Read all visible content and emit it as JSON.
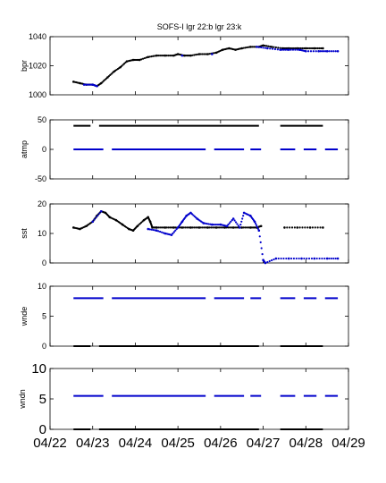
{
  "chart_data": [
    {
      "type": "scatter",
      "title": "SOFS-I  lgr 22:b lgr 23:k",
      "ylabel": "bpr",
      "xlim": [
        "04/22",
        "04/29"
      ],
      "ylim": [
        1000,
        1040
      ],
      "yticks": [
        "1000",
        "1020",
        "1040"
      ],
      "series": [
        {
          "color": "#000000",
          "points": [
            [
              0.55,
              1009
            ],
            [
              0.7,
              1008
            ],
            [
              0.85,
              1007
            ],
            [
              1.0,
              1007
            ],
            [
              1.1,
              1006
            ],
            [
              1.2,
              1008
            ],
            [
              1.35,
              1012
            ],
            [
              1.5,
              1016
            ],
            [
              1.65,
              1019
            ],
            [
              1.8,
              1023
            ],
            [
              1.95,
              1024
            ],
            [
              2.1,
              1024
            ],
            [
              2.3,
              1026
            ],
            [
              2.5,
              1027
            ],
            [
              2.7,
              1027
            ],
            [
              2.9,
              1027
            ],
            [
              3.0,
              1028
            ],
            [
              3.15,
              1027
            ],
            [
              3.3,
              1027
            ],
            [
              3.5,
              1028
            ],
            [
              3.7,
              1028
            ],
            [
              3.9,
              1029
            ],
            [
              4.05,
              1031
            ],
            [
              4.2,
              1032
            ],
            [
              4.35,
              1031
            ],
            [
              4.5,
              1032
            ],
            [
              4.7,
              1033
            ],
            [
              4.9,
              1033
            ],
            [
              5.0,
              1034
            ],
            [
              5.2,
              1033
            ],
            [
              5.45,
              1032
            ],
            [
              5.6,
              1032
            ],
            [
              5.8,
              1032
            ],
            [
              6.0,
              1032
            ],
            [
              6.2,
              1032
            ],
            [
              6.4,
              1032
            ]
          ]
        },
        {
          "color": "#0000cc",
          "points": [
            [
              0.8,
              1007
            ],
            [
              1.0,
              1007
            ],
            [
              1.1,
              1006
            ],
            [
              3.1,
              1027
            ],
            [
              3.8,
              1028
            ],
            [
              4.85,
              1033
            ],
            [
              5.1,
              1032
            ],
            [
              5.4,
              1031
            ],
            [
              5.6,
              1031
            ],
            [
              5.85,
              1031
            ],
            [
              6.0,
              1030
            ],
            [
              6.3,
              1030
            ],
            [
              6.5,
              1030
            ],
            [
              6.75,
              1030
            ]
          ]
        }
      ]
    },
    {
      "type": "line",
      "ylabel": "atmp",
      "xlim": [
        "04/22",
        "04/29"
      ],
      "ylim": [
        -50,
        50
      ],
      "yticks": [
        "-50",
        "0",
        "50"
      ],
      "series": [
        {
          "color": "#000000",
          "value": 40,
          "segments": [
            [
              0.55,
              0.95
            ],
            [
              1.15,
              4.9
            ],
            [
              5.4,
              6.4
            ]
          ]
        },
        {
          "color": "#0000cc",
          "value": 0,
          "segments": [
            [
              0.55,
              1.25
            ],
            [
              1.45,
              3.65
            ],
            [
              3.85,
              4.55
            ],
            [
              4.7,
              4.95
            ],
            [
              5.4,
              5.75
            ],
            [
              5.95,
              6.25
            ],
            [
              6.45,
              6.75
            ]
          ]
        }
      ]
    },
    {
      "type": "scatter",
      "ylabel": "sst",
      "xlim": [
        "04/22",
        "04/29"
      ],
      "ylim": [
        0,
        20
      ],
      "yticks": [
        "0",
        "10",
        "20"
      ],
      "series": [
        {
          "color": "#000000",
          "points": [
            [
              0.55,
              12
            ],
            [
              0.7,
              11.5
            ],
            [
              0.85,
              12.5
            ],
            [
              1.0,
              14
            ],
            [
              1.1,
              16
            ],
            [
              1.2,
              17.5
            ],
            [
              1.3,
              17
            ],
            [
              1.4,
              15.5
            ],
            [
              1.55,
              14.5
            ],
            [
              1.7,
              13
            ],
            [
              1.85,
              11.5
            ],
            [
              1.95,
              11
            ],
            [
              2.05,
              12.5
            ],
            [
              2.2,
              14.5
            ],
            [
              2.3,
              15.5
            ],
            [
              2.35,
              14
            ],
            [
              2.4,
              12
            ],
            [
              2.5,
              12
            ],
            [
              2.7,
              12
            ],
            [
              2.9,
              12
            ],
            [
              3.1,
              12
            ],
            [
              3.3,
              12
            ],
            [
              3.5,
              12
            ],
            [
              3.7,
              12
            ],
            [
              3.9,
              12
            ],
            [
              4.1,
              12
            ],
            [
              4.3,
              12
            ],
            [
              4.5,
              12
            ],
            [
              4.7,
              12
            ],
            [
              4.85,
              12
            ],
            [
              4.95,
              12.5
            ],
            [
              5.5,
              12
            ],
            [
              5.8,
              12
            ],
            [
              6.1,
              12
            ],
            [
              6.4,
              12
            ]
          ]
        },
        {
          "color": "#0000cc",
          "points": [
            [
              1.0,
              14
            ],
            [
              1.2,
              17.5
            ],
            [
              2.3,
              11.5
            ],
            [
              2.5,
              11
            ],
            [
              2.7,
              10
            ],
            [
              2.85,
              9.5
            ],
            [
              3.0,
              12
            ],
            [
              3.1,
              14
            ],
            [
              3.2,
              16
            ],
            [
              3.3,
              17
            ],
            [
              3.45,
              15
            ],
            [
              3.6,
              13.5
            ],
            [
              3.8,
              13
            ],
            [
              4.0,
              13
            ],
            [
              4.15,
              12.5
            ],
            [
              4.3,
              15
            ],
            [
              4.45,
              12
            ],
            [
              4.55,
              17
            ],
            [
              4.7,
              16
            ],
            [
              4.8,
              14
            ],
            [
              4.9,
              11
            ],
            [
              5.0,
              1
            ],
            [
              5.05,
              0
            ],
            [
              5.3,
              1.5
            ],
            [
              5.6,
              1.5
            ],
            [
              5.9,
              1.5
            ],
            [
              6.2,
              1.5
            ],
            [
              6.5,
              1.5
            ],
            [
              6.75,
              1.5
            ]
          ]
        }
      ]
    },
    {
      "type": "line",
      "ylabel": "wnde",
      "xlim": [
        "04/22",
        "04/29"
      ],
      "ylim": [
        0,
        10
      ],
      "yticks": [
        "0",
        "5",
        "10"
      ],
      "series": [
        {
          "color": "#000000",
          "value": 0,
          "segments": [
            [
              0.55,
              0.95
            ],
            [
              1.15,
              4.9
            ],
            [
              5.4,
              6.4
            ]
          ]
        },
        {
          "color": "#0000cc",
          "value": 8,
          "segments": [
            [
              0.55,
              1.25
            ],
            [
              1.45,
              3.65
            ],
            [
              3.85,
              4.55
            ],
            [
              4.7,
              4.95
            ],
            [
              5.4,
              5.75
            ],
            [
              5.95,
              6.25
            ],
            [
              6.45,
              6.75
            ]
          ]
        }
      ]
    },
    {
      "type": "line",
      "ylabel": "wndn",
      "xlim": [
        "04/22",
        "04/29"
      ],
      "ylim": [
        0,
        10
      ],
      "yticks": [
        "0",
        "5",
        "10"
      ],
      "xticks": [
        "04/22",
        "04/23",
        "04/24",
        "04/25",
        "04/26",
        "04/27",
        "04/28",
        "04/29"
      ],
      "series": [
        {
          "color": "#000000",
          "value": 0,
          "segments": [
            [
              0.55,
              0.95
            ],
            [
              1.15,
              4.9
            ],
            [
              5.4,
              6.4
            ]
          ]
        },
        {
          "color": "#0000cc",
          "value": 5.5,
          "segments": [
            [
              0.55,
              1.25
            ],
            [
              1.45,
              3.65
            ],
            [
              3.85,
              4.55
            ],
            [
              4.7,
              4.95
            ],
            [
              5.4,
              5.75
            ],
            [
              5.95,
              6.25
            ],
            [
              6.45,
              6.75
            ]
          ]
        }
      ]
    }
  ]
}
